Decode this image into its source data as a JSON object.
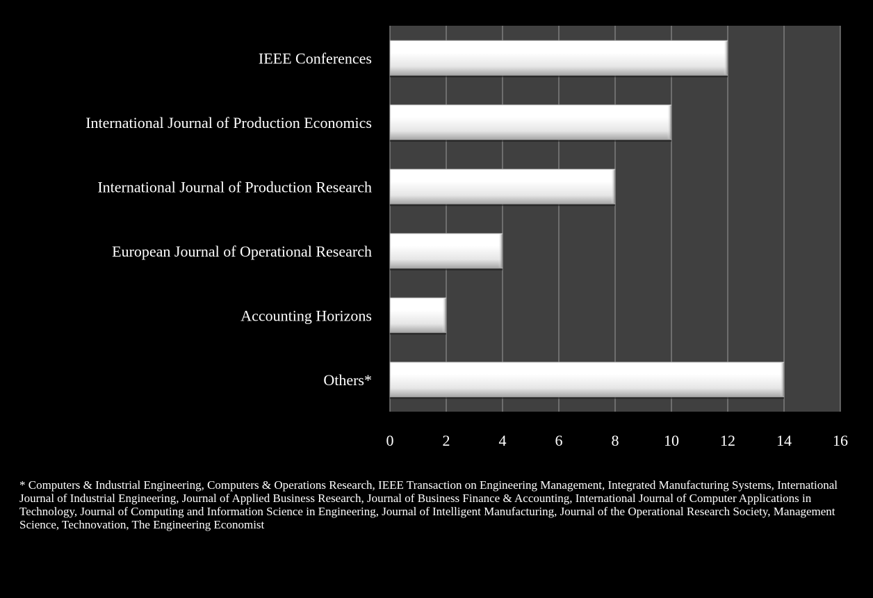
{
  "chart_data": {
    "type": "bar",
    "orientation": "horizontal",
    "categories": [
      "IEEE Conferences",
      "International Journal of Production Economics",
      "International Journal of Production Research",
      "European Journal of Operational Research",
      "Accounting Horizons",
      "Others*"
    ],
    "values": [
      12,
      10,
      8,
      4,
      2,
      14
    ],
    "xlim": [
      0,
      16
    ],
    "xticks": [
      "0",
      "2",
      "4",
      "6",
      "8",
      "10",
      "12",
      "14",
      "16"
    ],
    "grid": true,
    "legend": "none",
    "colors": {
      "background": "#000000",
      "plot_area": "#404040",
      "gridline": "#8c8c8c",
      "bar_light": "#ffffff",
      "bar_dark": "#a6a6a6",
      "text": "#ffffff"
    }
  },
  "footnote": "* Computers & Industrial Engineering, Computers & Operations Research, IEEE Transaction on Engineering Management, Integrated Manufacturing Systems, International Journal of Industrial Engineering, Journal of Applied Business Research,  Journal of Business Finance & Accounting, International Journal of Computer Applications in Technology,  Journal of Computing and Information Science in Engineering, Journal of Intelligent Manufacturing, Journal of  the Operational Research Society, Management Science, Technovation, The Engineering Economist"
}
